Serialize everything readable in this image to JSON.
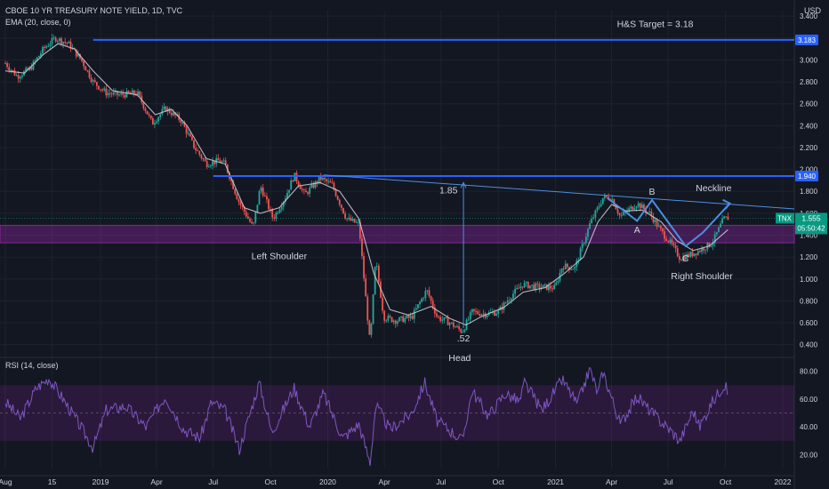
{
  "header": {
    "title": "CBOE 10 YR TREASURY NOTE YIELD, 1D, TVC",
    "indicator": "EMA (20, close, 0)",
    "currency": "USD"
  },
  "rsi": {
    "label": "RSI (14, close)",
    "ticks": [
      "80.00",
      "60.00",
      "40.00",
      "20.00"
    ],
    "band_upper": 70,
    "band_lower": 30
  },
  "colors": {
    "background": "#131722",
    "candle_up": "#26a69a",
    "candle_down": "#ef5350",
    "ema": "#d1d4dc",
    "drawing": "#2962ff",
    "zone": "#9c27b0",
    "price_tag": "#089981"
  },
  "chart_data": {
    "type": "candlestick",
    "title": "CBOE 10 YR TREASURY NOTE YIELD, 1D, TVC",
    "ylabel": "USD",
    "ylim": [
      0.3,
      3.45
    ],
    "y_ticks": [
      "3.400",
      "3.200",
      "3.000",
      "2.800",
      "2.600",
      "2.400",
      "2.200",
      "2.000",
      "1.800",
      "1.600",
      "1.400",
      "1.200",
      "1.000",
      "0.800",
      "0.600",
      "0.400"
    ],
    "x_ticks": [
      "Aug",
      "15",
      "2019",
      "Apr",
      "Jul",
      "Oct",
      "2020",
      "Apr",
      "Jul",
      "Oct",
      "2021",
      "Apr",
      "Jul",
      "Oct",
      "2022"
    ],
    "x_tick_dates": [
      "2018-08-01",
      "2018-10-15",
      "2019-01-01",
      "2019-04-01",
      "2019-07-01",
      "2019-10-01",
      "2020-01-01",
      "2020-04-01",
      "2020-07-01",
      "2020-10-01",
      "2021-01-01",
      "2021-04-01",
      "2021-07-01",
      "2021-10-01",
      "2022-01-01"
    ],
    "series": [
      {
        "name": "TNX",
        "points": [
          [
            "2018-08-01",
            2.97
          ],
          [
            "2018-08-20",
            2.85
          ],
          [
            "2018-09-10",
            2.92
          ],
          [
            "2018-10-01",
            3.1
          ],
          [
            "2018-10-20",
            3.2
          ],
          [
            "2018-11-10",
            3.15
          ],
          [
            "2018-12-01",
            3.0
          ],
          [
            "2018-12-20",
            2.8
          ],
          [
            "2019-01-10",
            2.7
          ],
          [
            "2019-02-01",
            2.68
          ],
          [
            "2019-03-01",
            2.7
          ],
          [
            "2019-03-25",
            2.42
          ],
          [
            "2019-04-15",
            2.56
          ],
          [
            "2019-05-10",
            2.45
          ],
          [
            "2019-06-01",
            2.2
          ],
          [
            "2019-06-20",
            2.05
          ],
          [
            "2019-07-10",
            2.08
          ],
          [
            "2019-07-20",
            2.05
          ],
          [
            "2019-08-10",
            1.72
          ],
          [
            "2019-09-03",
            1.47
          ],
          [
            "2019-09-15",
            1.85
          ],
          [
            "2019-10-05",
            1.55
          ],
          [
            "2019-10-25",
            1.75
          ],
          [
            "2019-11-08",
            1.95
          ],
          [
            "2019-11-25",
            1.77
          ],
          [
            "2019-12-20",
            1.92
          ],
          [
            "2020-01-08",
            1.86
          ],
          [
            "2020-01-31",
            1.55
          ],
          [
            "2020-02-20",
            1.5
          ],
          [
            "2020-03-09",
            0.4
          ],
          [
            "2020-03-18",
            1.18
          ],
          [
            "2020-03-31",
            0.65
          ],
          [
            "2020-04-20",
            0.62
          ],
          [
            "2020-05-15",
            0.65
          ],
          [
            "2020-06-08",
            0.9
          ],
          [
            "2020-06-25",
            0.65
          ],
          [
            "2020-07-15",
            0.6
          ],
          [
            "2020-08-04",
            0.52
          ],
          [
            "2020-08-20",
            0.7
          ],
          [
            "2020-09-10",
            0.68
          ],
          [
            "2020-10-01",
            0.7
          ],
          [
            "2020-10-22",
            0.85
          ],
          [
            "2020-11-09",
            0.95
          ],
          [
            "2020-12-01",
            0.93
          ],
          [
            "2020-12-31",
            0.92
          ],
          [
            "2021-01-12",
            1.12
          ],
          [
            "2021-02-01",
            1.1
          ],
          [
            "2021-02-25",
            1.5
          ],
          [
            "2021-03-18",
            1.74
          ],
          [
            "2021-03-31",
            1.75
          ],
          [
            "2021-04-15",
            1.57
          ],
          [
            "2021-05-12",
            1.69
          ],
          [
            "2021-06-01",
            1.6
          ],
          [
            "2021-06-18",
            1.45
          ],
          [
            "2021-07-08",
            1.3
          ],
          [
            "2021-07-20",
            1.19
          ],
          [
            "2021-08-05",
            1.22
          ],
          [
            "2021-08-20",
            1.26
          ],
          [
            "2021-09-10",
            1.33
          ],
          [
            "2021-09-28",
            1.55
          ],
          [
            "2021-10-05",
            1.555
          ]
        ]
      },
      {
        "name": "EMA (20, close, 0)",
        "points": [
          [
            "2018-08-01",
            2.9
          ],
          [
            "2018-09-01",
            2.88
          ],
          [
            "2018-10-01",
            3.05
          ],
          [
            "2018-10-25",
            3.15
          ],
          [
            "2018-11-20",
            3.1
          ],
          [
            "2018-12-20",
            2.9
          ],
          [
            "2019-01-20",
            2.72
          ],
          [
            "2019-03-01",
            2.68
          ],
          [
            "2019-03-30",
            2.5
          ],
          [
            "2019-04-25",
            2.55
          ],
          [
            "2019-05-20",
            2.4
          ],
          [
            "2019-06-20",
            2.1
          ],
          [
            "2019-07-20",
            2.05
          ],
          [
            "2019-08-20",
            1.65
          ],
          [
            "2019-09-15",
            1.6
          ],
          [
            "2019-10-15",
            1.65
          ],
          [
            "2019-11-15",
            1.85
          ],
          [
            "2019-12-20",
            1.88
          ],
          [
            "2020-01-20",
            1.8
          ],
          [
            "2020-02-20",
            1.55
          ],
          [
            "2020-03-15",
            1.05
          ],
          [
            "2020-04-10",
            0.72
          ],
          [
            "2020-05-10",
            0.67
          ],
          [
            "2020-06-15",
            0.75
          ],
          [
            "2020-07-15",
            0.64
          ],
          [
            "2020-08-10",
            0.58
          ],
          [
            "2020-09-05",
            0.66
          ],
          [
            "2020-10-10",
            0.74
          ],
          [
            "2020-11-10",
            0.88
          ],
          [
            "2020-12-15",
            0.92
          ],
          [
            "2021-01-15",
            1.05
          ],
          [
            "2021-02-15",
            1.2
          ],
          [
            "2021-03-10",
            1.52
          ],
          [
            "2021-04-01",
            1.68
          ],
          [
            "2021-04-25",
            1.62
          ],
          [
            "2021-05-20",
            1.63
          ],
          [
            "2021-06-20",
            1.52
          ],
          [
            "2021-07-15",
            1.35
          ],
          [
            "2021-08-10",
            1.26
          ],
          [
            "2021-09-05",
            1.3
          ],
          [
            "2021-10-05",
            1.45
          ]
        ]
      },
      {
        "name": "RSI (14, close)",
        "points": [
          [
            "2018-08-01",
            58
          ],
          [
            "2018-08-25",
            46
          ],
          [
            "2018-09-20",
            68
          ],
          [
            "2018-10-10",
            75
          ],
          [
            "2018-10-30",
            62
          ],
          [
            "2018-11-30",
            40
          ],
          [
            "2018-12-20",
            25
          ],
          [
            "2019-01-10",
            52
          ],
          [
            "2019-02-10",
            55
          ],
          [
            "2019-03-15",
            40
          ],
          [
            "2019-04-15",
            62
          ],
          [
            "2019-05-15",
            38
          ],
          [
            "2019-06-10",
            32
          ],
          [
            "2019-06-28",
            58
          ],
          [
            "2019-07-20",
            52
          ],
          [
            "2019-08-12",
            24
          ],
          [
            "2019-09-13",
            72
          ],
          [
            "2019-10-03",
            36
          ],
          [
            "2019-11-08",
            68
          ],
          [
            "2019-12-03",
            40
          ],
          [
            "2019-12-25",
            64
          ],
          [
            "2020-01-25",
            32
          ],
          [
            "2020-02-20",
            42
          ],
          [
            "2020-03-09",
            14
          ],
          [
            "2020-03-18",
            56
          ],
          [
            "2020-04-10",
            38
          ],
          [
            "2020-05-15",
            50
          ],
          [
            "2020-06-05",
            72
          ],
          [
            "2020-06-25",
            44
          ],
          [
            "2020-07-20",
            36
          ],
          [
            "2020-08-04",
            30
          ],
          [
            "2020-08-20",
            66
          ],
          [
            "2020-09-15",
            48
          ],
          [
            "2020-10-12",
            64
          ],
          [
            "2020-11-05",
            58
          ],
          [
            "2020-11-12",
            72
          ],
          [
            "2020-12-10",
            52
          ],
          [
            "2021-01-12",
            74
          ],
          [
            "2021-02-05",
            56
          ],
          [
            "2021-02-25",
            82
          ],
          [
            "2021-03-10",
            64
          ],
          [
            "2021-03-18",
            80
          ],
          [
            "2021-04-15",
            42
          ],
          [
            "2021-05-12",
            62
          ],
          [
            "2021-06-05",
            50
          ],
          [
            "2021-07-08",
            36
          ],
          [
            "2021-07-20",
            30
          ],
          [
            "2021-08-10",
            52
          ],
          [
            "2021-08-20",
            40
          ],
          [
            "2021-09-10",
            58
          ],
          [
            "2021-09-28",
            70
          ],
          [
            "2021-10-05",
            66
          ]
        ]
      }
    ],
    "levels": [
      {
        "label": "3.183",
        "value": 3.183,
        "color": "#2962ff"
      },
      {
        "label": "1.940",
        "value": 1.94,
        "color": "#2962ff"
      }
    ],
    "zone": {
      "low": 1.33,
      "high": 1.49
    },
    "last_price": {
      "symbol": "TNX",
      "value": "1.555",
      "countdown": "05:50:42"
    },
    "annotations": [
      {
        "text": "H&S Target = 3.18",
        "date": "2021-06-10",
        "y": 3.3
      },
      {
        "text": "Left Shoulder",
        "date": "2019-10-15",
        "y": 1.18
      },
      {
        "text": "Head",
        "date": "2020-07-31",
        "y": 0.25
      },
      {
        "text": ".52",
        "date": "2020-08-06",
        "y": 0.43
      },
      {
        "text": "1.85",
        "date": "2020-07-13",
        "y": 1.78
      },
      {
        "text": "Neckline",
        "date": "2021-09-12",
        "y": 1.8
      },
      {
        "text": "Right Shoulder",
        "date": "2021-08-24",
        "y": 1.0
      },
      {
        "text": "A",
        "date": "2021-05-12",
        "y": 1.42
      },
      {
        "text": "B",
        "date": "2021-06-05",
        "y": 1.77
      },
      {
        "text": "C",
        "date": "2021-07-29",
        "y": 1.16
      }
    ]
  }
}
